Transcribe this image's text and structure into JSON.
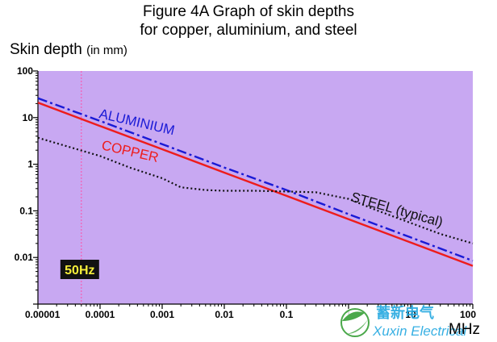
{
  "chart_data": {
    "type": "line",
    "title": "Figure 4A   Graph of skin depths",
    "subtitle": "for copper, aluminium, and steel",
    "ylabel": "Skin depth",
    "ylabel_unit": "(in mm)",
    "xlabel": "MHz",
    "xscale": "log",
    "yscale": "log",
    "xlim": [
      1e-05,
      100
    ],
    "ylim": [
      0.001,
      100
    ],
    "xticks": [
      "0.00001",
      "0.0001",
      "0.001",
      "0.01",
      "0.1",
      "1",
      "10",
      "100"
    ],
    "xtick_values": [
      1e-05,
      0.0001,
      0.001,
      0.01,
      0.1,
      1,
      10,
      100
    ],
    "yticks": [
      "100",
      "10",
      "1",
      "0.1",
      "0.01"
    ],
    "ytick_values": [
      100,
      10,
      1,
      0.1,
      0.01
    ],
    "background": "#c8a8f2",
    "grid": false,
    "series": [
      {
        "name": "ALUMINIUM",
        "color": "#1a1ad6",
        "style": "dashdot",
        "points": [
          [
            1e-05,
            26
          ],
          [
            0.0001,
            8.5
          ],
          [
            0.001,
            2.7
          ],
          [
            0.01,
            0.85
          ],
          [
            0.1,
            0.28
          ],
          [
            1,
            0.085
          ],
          [
            10,
            0.027
          ],
          [
            100,
            0.0085
          ]
        ]
      },
      {
        "name": "COPPER",
        "color": "#ee1c1c",
        "style": "solid",
        "points": [
          [
            1e-05,
            21
          ],
          [
            0.0001,
            6.6
          ],
          [
            0.001,
            2.1
          ],
          [
            0.01,
            0.66
          ],
          [
            0.1,
            0.21
          ],
          [
            1,
            0.066
          ],
          [
            10,
            0.021
          ],
          [
            100,
            0.0066
          ]
        ]
      },
      {
        "name": "STEEL (typical)",
        "color": "#111111",
        "style": "dotted",
        "points": [
          [
            1e-05,
            3.7
          ],
          [
            0.0001,
            1.5
          ],
          [
            0.0003,
            0.85
          ],
          [
            0.001,
            0.5
          ],
          [
            0.002,
            0.32
          ],
          [
            0.005,
            0.28
          ],
          [
            0.01,
            0.27
          ],
          [
            0.03,
            0.27
          ],
          [
            0.1,
            0.26
          ],
          [
            0.3,
            0.25
          ],
          [
            1,
            0.18
          ],
          [
            3,
            0.1
          ],
          [
            10,
            0.055
          ],
          [
            30,
            0.032
          ],
          [
            100,
            0.02
          ]
        ]
      }
    ],
    "annotations": {
      "frequency_marker_label": "50Hz",
      "frequency_marker_x": 5e-05,
      "frequency_marker_color": "#ff4da6"
    }
  },
  "watermark": {
    "text_cn": "蓄新电气",
    "text_en": "Xuxin Electrical",
    "color": "#23a8e0",
    "logo_color": "#4aa84a"
  }
}
